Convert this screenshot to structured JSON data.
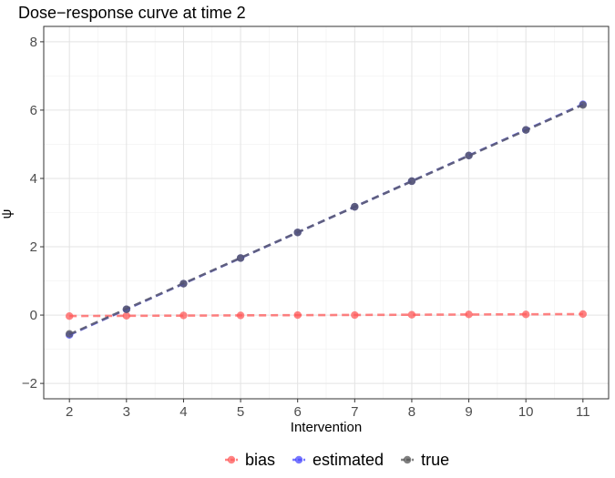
{
  "chart_data": {
    "type": "line",
    "title": "Dose−response curve at time 2",
    "xlabel": "Intervention",
    "ylabel": "ψ",
    "xlim": [
      1.55,
      11.45
    ],
    "ylim": [
      -2.45,
      8.45
    ],
    "xticks": [
      2,
      3,
      4,
      5,
      6,
      7,
      8,
      9,
      10,
      11
    ],
    "yticks": [
      -2,
      0,
      2,
      4,
      6,
      8
    ],
    "ytick_labels": [
      "−2",
      "0",
      "2",
      "4",
      "6",
      "8"
    ],
    "grid": true,
    "legend_position": "bottom",
    "series": [
      {
        "name": "bias",
        "color": "#ff5a5a",
        "x": [
          2,
          3,
          4,
          5,
          6,
          7,
          8,
          9,
          10,
          11
        ],
        "y": [
          -0.03,
          -0.02,
          -0.01,
          -0.01,
          0.0,
          0.0,
          0.01,
          0.02,
          0.02,
          0.03
        ]
      },
      {
        "name": "estimated",
        "color": "#4a4aff",
        "x": [
          2,
          3,
          4,
          5,
          6,
          7,
          8,
          9,
          10,
          11
        ],
        "y": [
          -0.58,
          0.17,
          0.92,
          1.67,
          2.42,
          3.17,
          3.92,
          4.67,
          5.42,
          6.17
        ]
      },
      {
        "name": "true",
        "color": "#555555",
        "x": [
          2,
          3,
          4,
          5,
          6,
          7,
          8,
          9,
          10,
          11
        ],
        "y": [
          -0.55,
          0.17,
          0.92,
          1.67,
          2.42,
          3.17,
          3.92,
          4.67,
          5.42,
          6.15
        ]
      }
    ]
  }
}
